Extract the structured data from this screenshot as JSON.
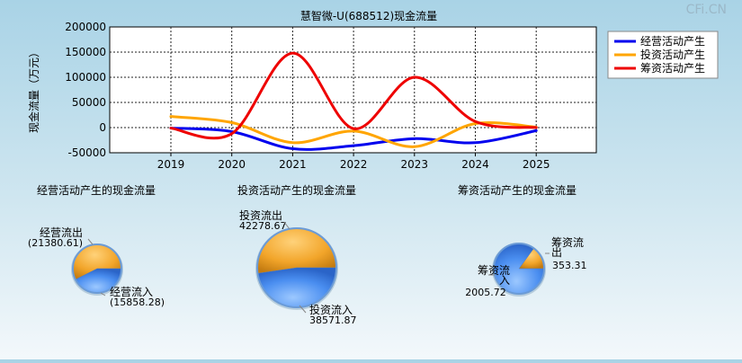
{
  "watermark": "CFi.CN",
  "chart_data": [
    {
      "type": "line",
      "title": "慧智微-U(688512)现金流量",
      "ylabel": "现金流量（万元）",
      "x": [
        "2019",
        "2020",
        "2021",
        "2022",
        "2023",
        "2024",
        "2025"
      ],
      "ylim": [
        -50000,
        200000
      ],
      "yticks": [
        "200000",
        "150000",
        "100000",
        "50000",
        "0",
        "-50000"
      ],
      "grid": true,
      "legend_position": "top-right",
      "series": [
        {
          "name": "经营活动产生",
          "color": "#0000ee",
          "values": [
            -1000,
            -8000,
            -42000,
            -36000,
            -22000,
            -30000,
            -6000
          ]
        },
        {
          "name": "投资活动产生",
          "color": "#ffa500",
          "values": [
            22000,
            10000,
            -30000,
            -7000,
            -38000,
            8000,
            1000
          ]
        },
        {
          "name": "筹资活动产生",
          "color": "#ee0000",
          "values": [
            -1000,
            -12000,
            148000,
            -2000,
            100000,
            12000,
            0
          ]
        }
      ]
    },
    {
      "type": "pie",
      "title": "经营活动产生的现金流量",
      "slices": [
        {
          "label": "经营流出",
          "value": 21380.61,
          "value_text": "(21380.61)",
          "color": "#f0a020"
        },
        {
          "label": "经营流入",
          "value": 15858.28,
          "value_text": "(15858.28)",
          "color": "#4a8ef0"
        }
      ]
    },
    {
      "type": "pie",
      "title": "投资活动产生的现金流量",
      "slices": [
        {
          "label": "投资流出",
          "value": 42278.67,
          "value_text": "42278.67",
          "color": "#f0a020"
        },
        {
          "label": "投资流入",
          "value": 38571.87,
          "value_text": "38571.87",
          "color": "#4a8ef0"
        }
      ]
    },
    {
      "type": "pie",
      "title": "筹资活动产生的现金流量",
      "slices": [
        {
          "label": "筹资流出",
          "value": 353.31,
          "value_text": "353.31",
          "color": "#f0a020"
        },
        {
          "label": "筹资流入",
          "value": 2005.72,
          "value_text": "2005.72",
          "color": "#4a8ef0"
        }
      ]
    }
  ]
}
